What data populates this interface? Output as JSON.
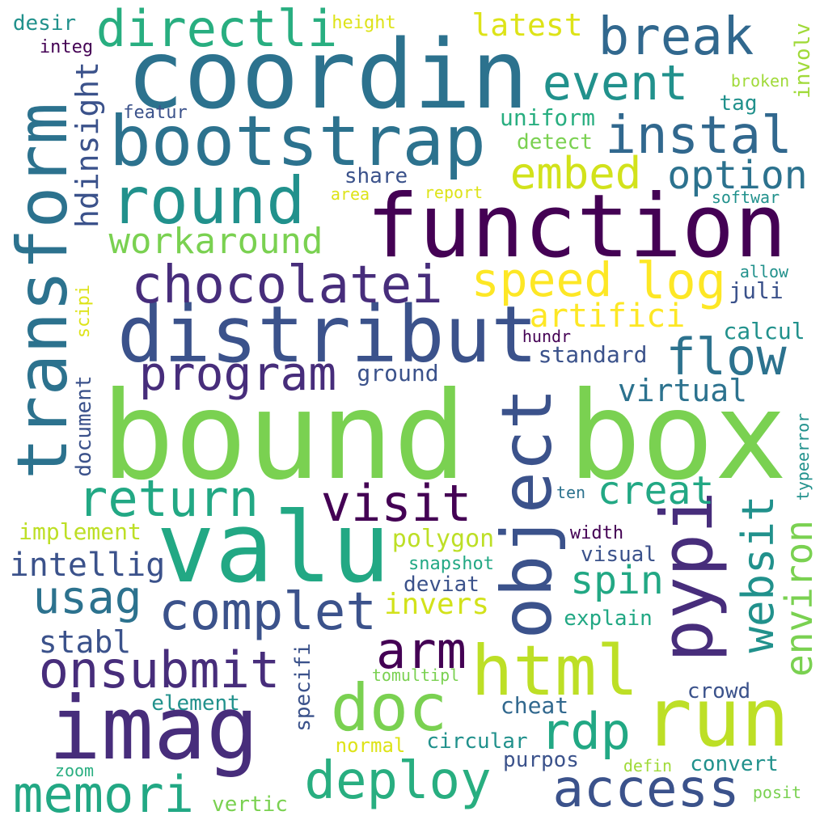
{
  "words": [
    {
      "text": "bound",
      "color": "#7ad151"
    },
    {
      "text": "box",
      "color": "#7ad151"
    },
    {
      "text": "coordin",
      "color": "#2c728e"
    },
    {
      "text": "function",
      "color": "#440154"
    },
    {
      "text": "valu",
      "color": "#22a884"
    },
    {
      "text": "distribut",
      "color": "#3b528b"
    },
    {
      "text": "bootstrap",
      "color": "#2c728e"
    },
    {
      "text": "transform",
      "color": "#2c728e"
    },
    {
      "text": "imag",
      "color": "#472d7b"
    },
    {
      "text": "round",
      "color": "#21918c"
    },
    {
      "text": "object",
      "color": "#3b528b"
    },
    {
      "text": "run",
      "color": "#bddf26"
    },
    {
      "text": "pypi",
      "color": "#472d7b"
    },
    {
      "text": "html",
      "color": "#bddf26"
    },
    {
      "text": "chocolatei",
      "color": "#472d7b"
    },
    {
      "text": "directli",
      "color": "#28ae80"
    },
    {
      "text": "break",
      "color": "#31688e"
    },
    {
      "text": "instal",
      "color": "#31688e"
    },
    {
      "text": "event",
      "color": "#21918c"
    },
    {
      "text": "program",
      "color": "#472d7b"
    },
    {
      "text": "return",
      "color": "#22a884"
    },
    {
      "text": "visit",
      "color": "#440154"
    },
    {
      "text": "complet",
      "color": "#3b528b"
    },
    {
      "text": "onsubmit",
      "color": "#472d7b"
    },
    {
      "text": "doc",
      "color": "#7ad151"
    },
    {
      "text": "memori",
      "color": "#22a884"
    },
    {
      "text": "deploy",
      "color": "#28ae80"
    },
    {
      "text": "access",
      "color": "#3b528b"
    },
    {
      "text": "arm",
      "color": "#440154"
    },
    {
      "text": "rdp",
      "color": "#22a884"
    },
    {
      "text": "log",
      "color": "#fde725"
    },
    {
      "text": "speed",
      "color": "#fde725"
    },
    {
      "text": "embed",
      "color": "#d2e21b"
    },
    {
      "text": "option",
      "color": "#2c728e"
    },
    {
      "text": "flow",
      "color": "#2c728e"
    },
    {
      "text": "websit",
      "color": "#21918c"
    },
    {
      "text": "environ",
      "color": "#7ad151"
    },
    {
      "text": "usag",
      "color": "#2c728e"
    },
    {
      "text": "workaround",
      "color": "#7ad151"
    },
    {
      "text": "spin",
      "color": "#22a884"
    },
    {
      "text": "creat",
      "color": "#22a884"
    },
    {
      "text": "artifici",
      "color": "#fde725"
    },
    {
      "text": "intellig",
      "color": "#3b528b"
    },
    {
      "text": "hdinsight",
      "color": "#3b528b"
    },
    {
      "text": "latest",
      "color": "#dde318"
    },
    {
      "text": "virtual",
      "color": "#2c728e"
    },
    {
      "text": "stabl",
      "color": "#3b528b"
    },
    {
      "text": "invers",
      "color": "#d2e21b"
    },
    {
      "text": "polygon",
      "color": "#bddf26"
    },
    {
      "text": "ground",
      "color": "#3b528b"
    },
    {
      "text": "standard",
      "color": "#3b528b"
    },
    {
      "text": "implement",
      "color": "#bddf26"
    },
    {
      "text": "document",
      "color": "#3b528b"
    },
    {
      "text": "uniform",
      "color": "#28ae80"
    },
    {
      "text": "detect",
      "color": "#7ad151"
    },
    {
      "text": "share",
      "color": "#3b528b"
    },
    {
      "text": "calcul",
      "color": "#21918c"
    },
    {
      "text": "juli",
      "color": "#3b528b"
    },
    {
      "text": "tag",
      "color": "#21918c"
    },
    {
      "text": "involv",
      "color": "#a0da39"
    },
    {
      "text": "desir",
      "color": "#21918c"
    },
    {
      "text": "integ",
      "color": "#440154"
    },
    {
      "text": "height",
      "color": "#dde318"
    },
    {
      "text": "featur",
      "color": "#3b528b"
    },
    {
      "text": "broken",
      "color": "#a0da39"
    },
    {
      "text": "area",
      "color": "#dde318"
    },
    {
      "text": "report",
      "color": "#dde318"
    },
    {
      "text": "softwar",
      "color": "#21918c"
    },
    {
      "text": "allow",
      "color": "#21918c"
    },
    {
      "text": "scipi",
      "color": "#dde318"
    },
    {
      "text": "hundr",
      "color": "#440154"
    },
    {
      "text": "ten",
      "color": "#2c728e"
    },
    {
      "text": "typeerror",
      "color": "#21918c"
    },
    {
      "text": "width",
      "color": "#440154"
    },
    {
      "text": "visual",
      "color": "#3b528b"
    },
    {
      "text": "snapshot",
      "color": "#22a884"
    },
    {
      "text": "deviat",
      "color": "#3b528b"
    },
    {
      "text": "explain",
      "color": "#22a884"
    },
    {
      "text": "specifi",
      "color": "#3b528b"
    },
    {
      "text": "tomultipl",
      "color": "#7ad151"
    },
    {
      "text": "element",
      "color": "#21918c"
    },
    {
      "text": "crowd",
      "color": "#3b528b"
    },
    {
      "text": "cheat",
      "color": "#31688e"
    },
    {
      "text": "normal",
      "color": "#dde318"
    },
    {
      "text": "circular",
      "color": "#21918c"
    },
    {
      "text": "purpos",
      "color": "#3b528b"
    },
    {
      "text": "convert",
      "color": "#21918c"
    },
    {
      "text": "defin",
      "color": "#a0da39"
    },
    {
      "text": "zoom",
      "color": "#28ae80"
    },
    {
      "text": "vertic",
      "color": "#7ad151"
    },
    {
      "text": "posit",
      "color": "#7ad151"
    }
  ]
}
